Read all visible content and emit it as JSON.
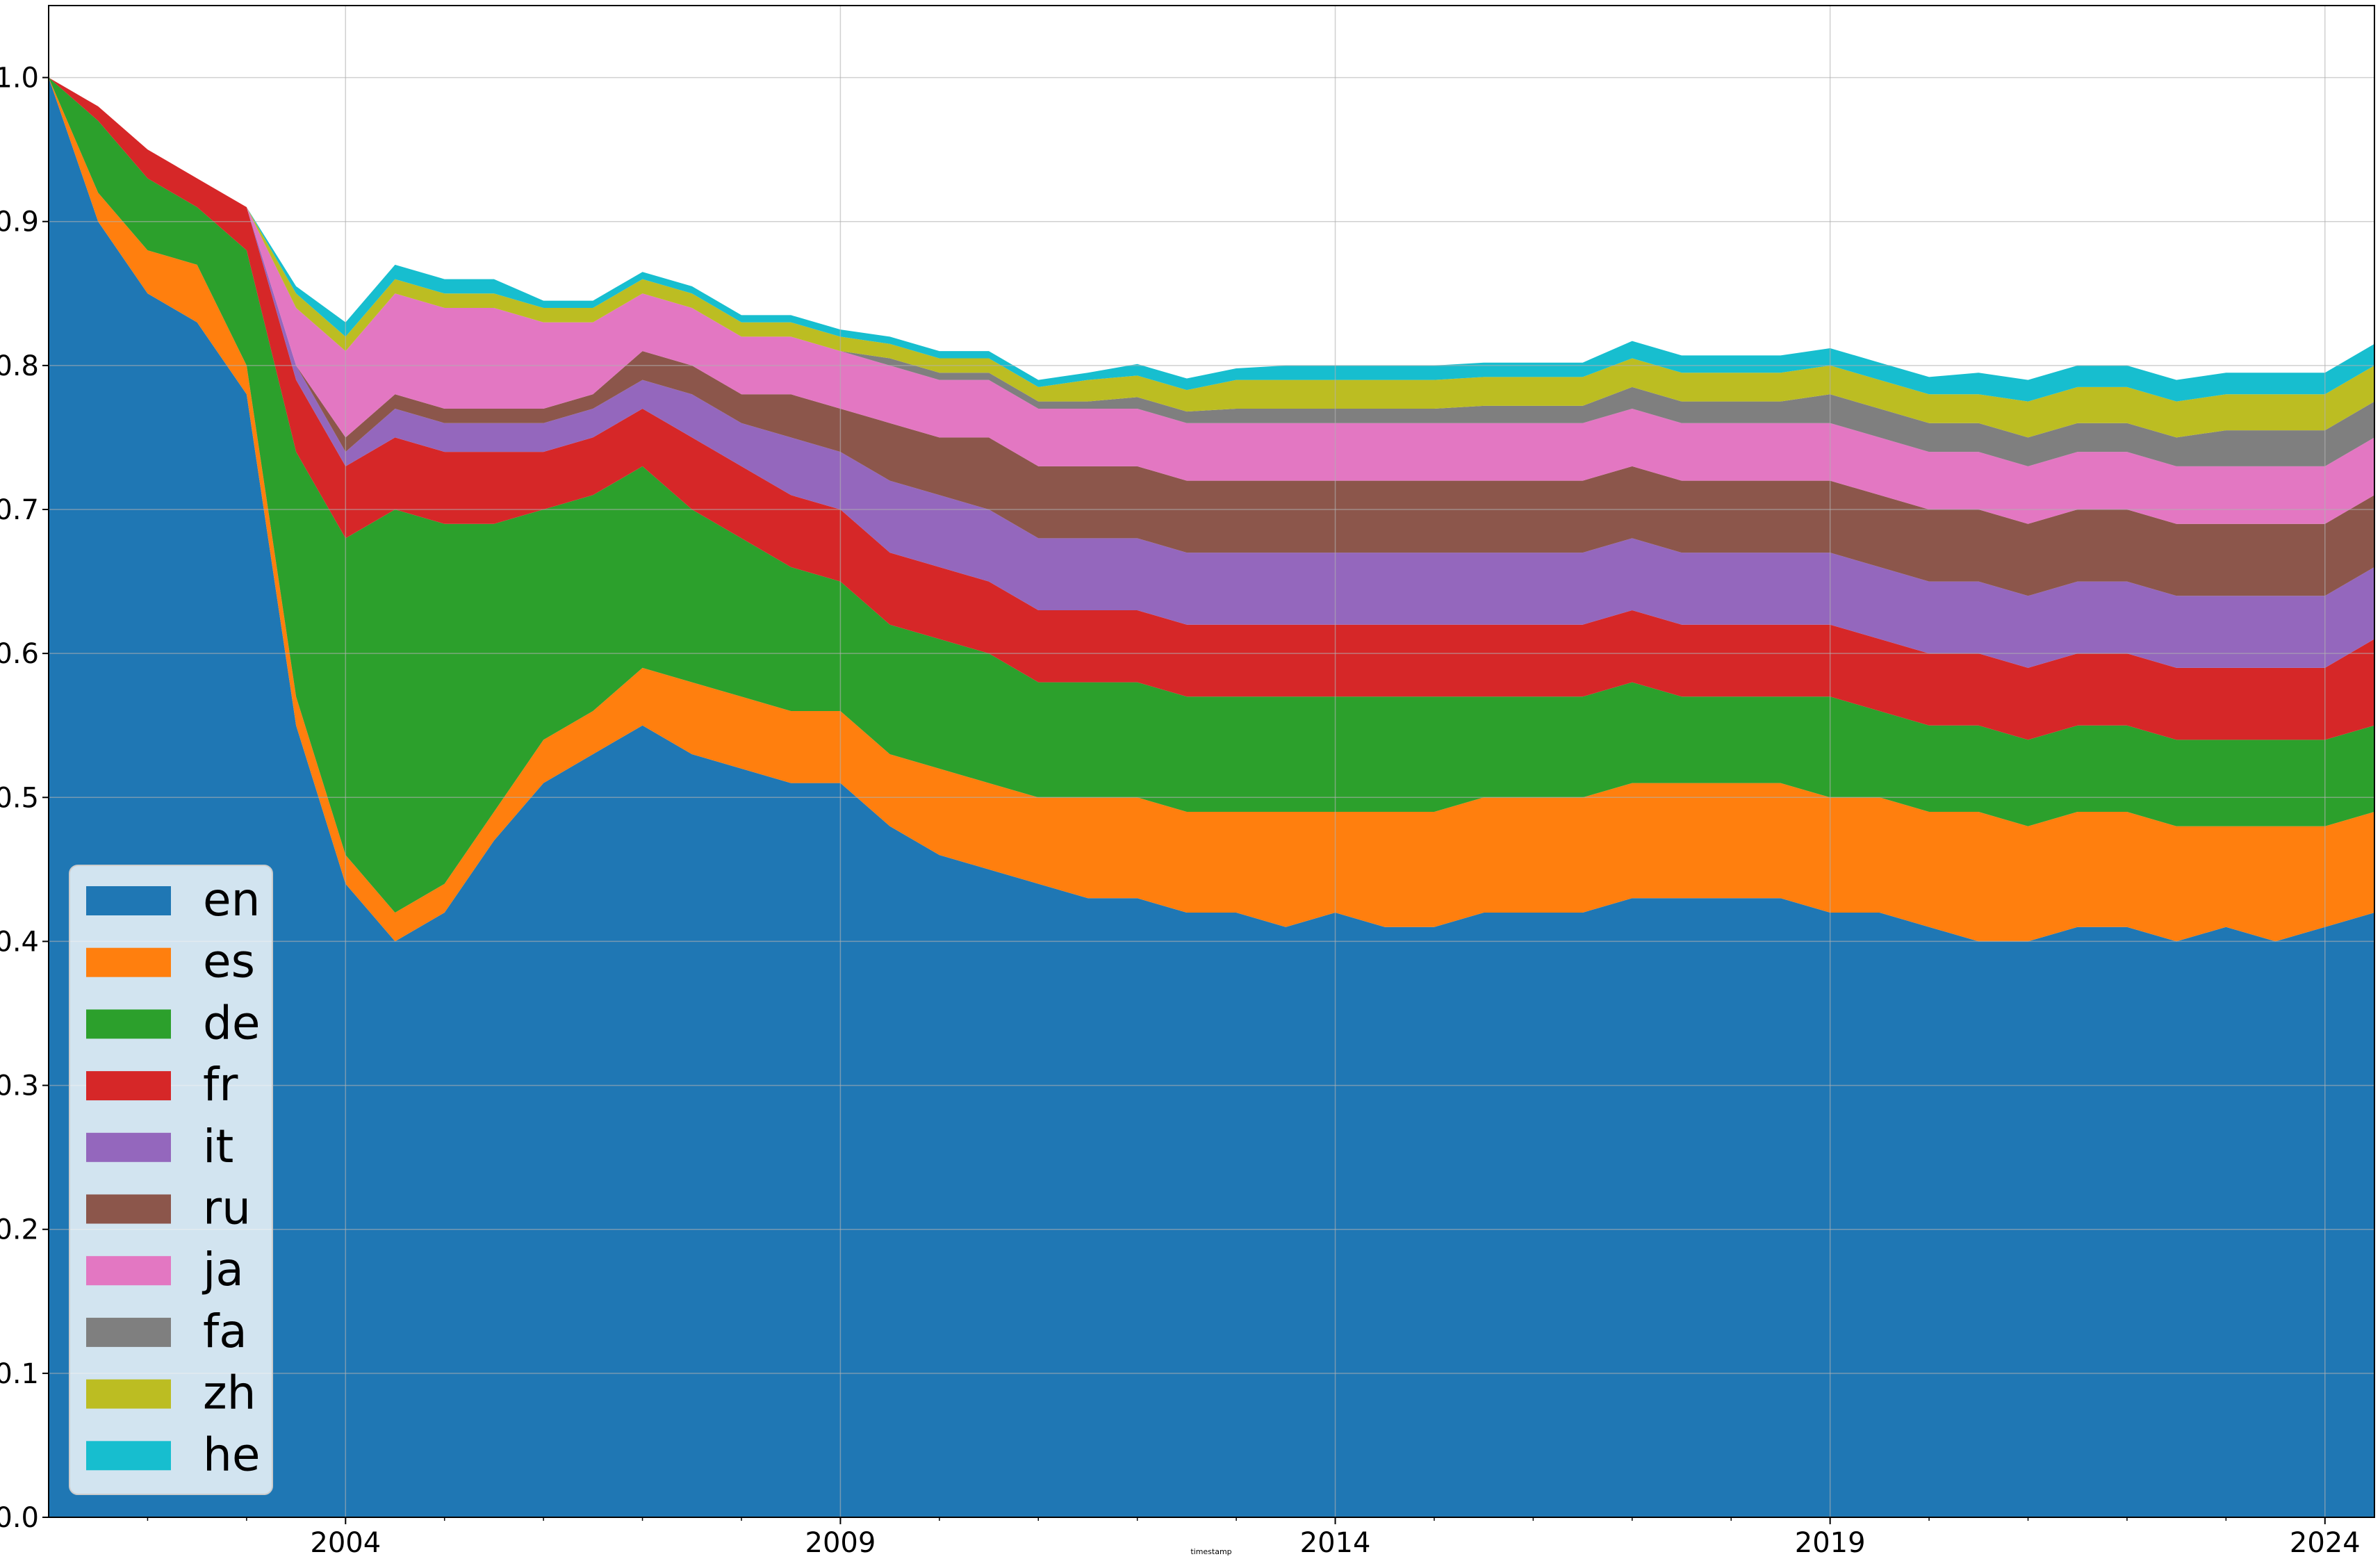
{
  "chart_data": {
    "type": "area",
    "stacked": true,
    "title": "",
    "xlabel": "timestamp",
    "ylabel": "",
    "ylim": [
      0,
      1.05
    ],
    "xlim": [
      "2001-01",
      "2024-07"
    ],
    "grid": true,
    "legend_position": "lower-left",
    "x_ticks": [
      "2004",
      "2009",
      "2014",
      "2019",
      "2024"
    ],
    "y_ticks": [
      "0.0",
      "0.1",
      "0.2",
      "0.3",
      "0.4",
      "0.5",
      "0.6",
      "0.7",
      "0.8",
      "0.9",
      "1.0"
    ],
    "x": [
      2001.0,
      2001.5,
      2002.0,
      2002.5,
      2003.0,
      2003.5,
      2004.0,
      2004.5,
      2005.0,
      2005.5,
      2006.0,
      2006.5,
      2007.0,
      2007.5,
      2008.0,
      2008.5,
      2009.0,
      2009.5,
      2010.0,
      2010.5,
      2011.0,
      2011.5,
      2012.0,
      2012.5,
      2013.0,
      2013.5,
      2014.0,
      2014.5,
      2015.0,
      2015.5,
      2016.0,
      2016.5,
      2017.0,
      2017.5,
      2018.0,
      2018.5,
      2019.0,
      2019.5,
      2020.0,
      2020.5,
      2021.0,
      2021.5,
      2022.0,
      2022.5,
      2023.0,
      2023.5,
      2024.0,
      2024.5
    ],
    "series": [
      {
        "name": "en",
        "color": "#1f77b4",
        "values": [
          1.0,
          0.9,
          0.85,
          0.83,
          0.78,
          0.55,
          0.44,
          0.4,
          0.42,
          0.47,
          0.51,
          0.53,
          0.55,
          0.53,
          0.52,
          0.51,
          0.51,
          0.48,
          0.46,
          0.45,
          0.44,
          0.43,
          0.43,
          0.42,
          0.42,
          0.41,
          0.42,
          0.41,
          0.41,
          0.42,
          0.42,
          0.42,
          0.43,
          0.43,
          0.43,
          0.43,
          0.42,
          0.42,
          0.41,
          0.4,
          0.4,
          0.41,
          0.41,
          0.4,
          0.41,
          0.4,
          0.41,
          0.42
        ]
      },
      {
        "name": "es",
        "color": "#ff7f0e",
        "values": [
          0.0,
          0.02,
          0.03,
          0.04,
          0.02,
          0.02,
          0.02,
          0.02,
          0.02,
          0.02,
          0.03,
          0.03,
          0.04,
          0.05,
          0.05,
          0.05,
          0.05,
          0.05,
          0.06,
          0.06,
          0.06,
          0.07,
          0.07,
          0.07,
          0.07,
          0.08,
          0.07,
          0.08,
          0.08,
          0.08,
          0.08,
          0.08,
          0.08,
          0.08,
          0.08,
          0.08,
          0.08,
          0.08,
          0.08,
          0.09,
          0.08,
          0.08,
          0.08,
          0.08,
          0.07,
          0.08,
          0.07,
          0.07
        ]
      },
      {
        "name": "de",
        "color": "#2ca02c",
        "values": [
          0.0,
          0.05,
          0.05,
          0.04,
          0.08,
          0.17,
          0.22,
          0.28,
          0.25,
          0.2,
          0.16,
          0.15,
          0.14,
          0.12,
          0.11,
          0.1,
          0.09,
          0.09,
          0.09,
          0.09,
          0.08,
          0.08,
          0.08,
          0.08,
          0.08,
          0.08,
          0.08,
          0.08,
          0.08,
          0.07,
          0.07,
          0.07,
          0.07,
          0.06,
          0.06,
          0.06,
          0.07,
          0.06,
          0.06,
          0.06,
          0.06,
          0.06,
          0.06,
          0.06,
          0.06,
          0.06,
          0.06,
          0.06
        ]
      },
      {
        "name": "fr",
        "color": "#d62728",
        "values": [
          0.0,
          0.01,
          0.02,
          0.02,
          0.03,
          0.05,
          0.05,
          0.05,
          0.05,
          0.05,
          0.04,
          0.04,
          0.04,
          0.05,
          0.05,
          0.05,
          0.05,
          0.05,
          0.05,
          0.05,
          0.05,
          0.05,
          0.05,
          0.05,
          0.05,
          0.05,
          0.05,
          0.05,
          0.05,
          0.05,
          0.05,
          0.05,
          0.05,
          0.05,
          0.05,
          0.05,
          0.05,
          0.05,
          0.05,
          0.05,
          0.05,
          0.05,
          0.05,
          0.05,
          0.05,
          0.05,
          0.05,
          0.06
        ]
      },
      {
        "name": "it",
        "color": "#9467bd",
        "values": [
          0.0,
          0.0,
          0.0,
          0.0,
          0.0,
          0.01,
          0.01,
          0.02,
          0.02,
          0.02,
          0.02,
          0.02,
          0.02,
          0.03,
          0.03,
          0.04,
          0.04,
          0.05,
          0.05,
          0.05,
          0.05,
          0.05,
          0.05,
          0.05,
          0.05,
          0.05,
          0.05,
          0.05,
          0.05,
          0.05,
          0.05,
          0.05,
          0.05,
          0.05,
          0.05,
          0.05,
          0.05,
          0.05,
          0.05,
          0.05,
          0.05,
          0.05,
          0.05,
          0.05,
          0.05,
          0.05,
          0.05,
          0.05
        ]
      },
      {
        "name": "ru",
        "color": "#8c564b",
        "values": [
          0.0,
          0.0,
          0.0,
          0.0,
          0.0,
          0.0,
          0.01,
          0.01,
          0.01,
          0.01,
          0.01,
          0.01,
          0.02,
          0.02,
          0.02,
          0.03,
          0.03,
          0.04,
          0.04,
          0.05,
          0.05,
          0.05,
          0.05,
          0.05,
          0.05,
          0.05,
          0.05,
          0.05,
          0.05,
          0.05,
          0.05,
          0.05,
          0.05,
          0.05,
          0.05,
          0.05,
          0.05,
          0.05,
          0.05,
          0.05,
          0.05,
          0.05,
          0.05,
          0.05,
          0.05,
          0.05,
          0.05,
          0.05
        ]
      },
      {
        "name": "ja",
        "color": "#e377c2",
        "values": [
          0.0,
          0.0,
          0.0,
          0.0,
          0.0,
          0.04,
          0.06,
          0.07,
          0.07,
          0.07,
          0.06,
          0.05,
          0.04,
          0.04,
          0.04,
          0.04,
          0.04,
          0.04,
          0.04,
          0.04,
          0.04,
          0.04,
          0.04,
          0.04,
          0.04,
          0.04,
          0.04,
          0.04,
          0.04,
          0.04,
          0.04,
          0.04,
          0.04,
          0.04,
          0.04,
          0.04,
          0.04,
          0.04,
          0.04,
          0.04,
          0.04,
          0.04,
          0.04,
          0.04,
          0.04,
          0.04,
          0.04,
          0.04
        ]
      },
      {
        "name": "fa",
        "color": "#7f7f7f",
        "values": [
          0.0,
          0.0,
          0.0,
          0.0,
          0.0,
          0.0,
          0.0,
          0.0,
          0.0,
          0.0,
          0.0,
          0.0,
          0.0,
          0.0,
          0.0,
          0.0,
          0.0,
          0.005,
          0.005,
          0.005,
          0.005,
          0.005,
          0.008,
          0.008,
          0.01,
          0.01,
          0.01,
          0.01,
          0.01,
          0.012,
          0.012,
          0.012,
          0.015,
          0.015,
          0.015,
          0.015,
          0.02,
          0.02,
          0.02,
          0.02,
          0.02,
          0.02,
          0.02,
          0.02,
          0.025,
          0.025,
          0.025,
          0.025
        ]
      },
      {
        "name": "zh",
        "color": "#bcbd22",
        "values": [
          0.0,
          0.0,
          0.0,
          0.0,
          0.0,
          0.01,
          0.01,
          0.01,
          0.01,
          0.01,
          0.01,
          0.01,
          0.01,
          0.01,
          0.01,
          0.01,
          0.01,
          0.01,
          0.01,
          0.01,
          0.01,
          0.015,
          0.015,
          0.015,
          0.02,
          0.02,
          0.02,
          0.02,
          0.02,
          0.02,
          0.02,
          0.02,
          0.02,
          0.02,
          0.02,
          0.02,
          0.02,
          0.02,
          0.02,
          0.02,
          0.025,
          0.025,
          0.025,
          0.025,
          0.025,
          0.025,
          0.025,
          0.025
        ]
      },
      {
        "name": "he",
        "color": "#17becf",
        "values": [
          0.0,
          0.0,
          0.0,
          0.0,
          0.0,
          0.005,
          0.01,
          0.01,
          0.01,
          0.01,
          0.005,
          0.005,
          0.005,
          0.005,
          0.005,
          0.005,
          0.005,
          0.005,
          0.005,
          0.005,
          0.005,
          0.005,
          0.008,
          0.008,
          0.008,
          0.01,
          0.01,
          0.01,
          0.01,
          0.01,
          0.01,
          0.01,
          0.012,
          0.012,
          0.012,
          0.012,
          0.012,
          0.012,
          0.012,
          0.015,
          0.015,
          0.015,
          0.015,
          0.015,
          0.015,
          0.015,
          0.015,
          0.015
        ]
      }
    ]
  }
}
